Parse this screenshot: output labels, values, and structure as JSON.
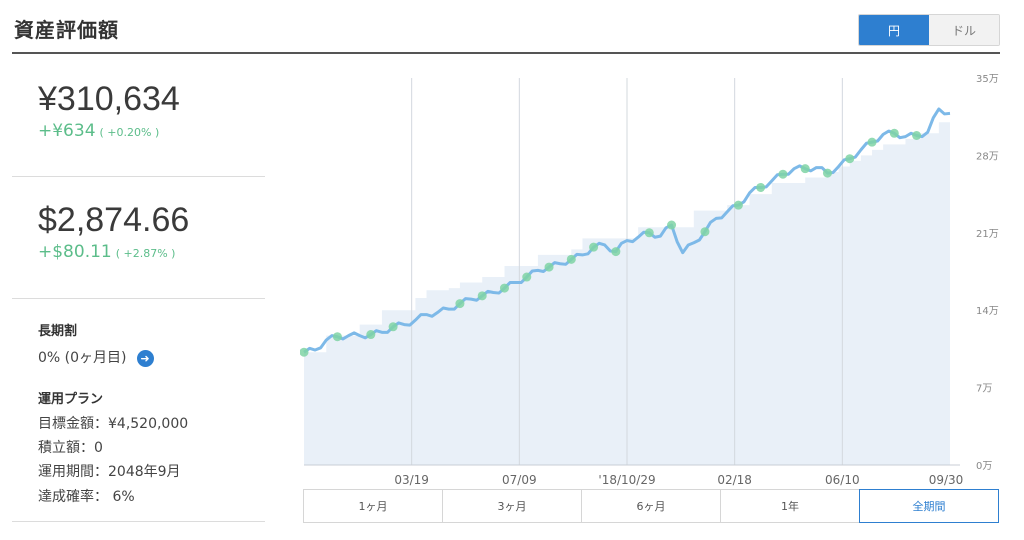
{
  "header": {
    "title": "資産評価額"
  },
  "currency_toggle": {
    "yen": "円",
    "dollar": "ドル",
    "selected": "円"
  },
  "yen_value": {
    "amount": "¥310,634",
    "change": "+¥634",
    "change_pct": "( +0.20% )"
  },
  "usd_value": {
    "amount": "$2,874.66",
    "change": "+$80.11",
    "change_pct": "( +2.87% )"
  },
  "long_term": {
    "label": "長期割",
    "value": "0% (0ヶ月目)"
  },
  "plan": {
    "label": "運用プラン",
    "target": "目標金額：¥4,520,000",
    "monthly": "積立額：0",
    "period": "運用期間：2048年9月",
    "probability": "達成確率： 6%"
  },
  "periods": [
    "1ヶ月",
    "3ヶ月",
    "6ヶ月",
    "1年",
    "全期間"
  ],
  "active_period": "全期間",
  "colors": {
    "accent": "#2e7fd0",
    "line": "#7db9e8",
    "area": "#e9f0f8",
    "marker": "#7fd3a4",
    "positive": "#5cbd8a"
  },
  "chart_data": {
    "type": "line",
    "x_labels": [
      "03/19",
      "07/09",
      "'18/10/29",
      "02/18",
      "06/10",
      "09/30"
    ],
    "y_ticks": [
      "0万",
      "7万",
      "14万",
      "21万",
      "28万",
      "35万"
    ],
    "ylim": [
      0,
      350000
    ],
    "grid": "vertical",
    "series": [
      {
        "values": [
          102000,
          104000,
          113000,
          116000,
          117000,
          117000,
          118000,
          120000,
          125000,
          127000,
          131000,
          136000,
          138000,
          141000,
          146000,
          150000,
          153000,
          156000,
          160000,
          165000,
          170000,
          176000,
          179000,
          182000,
          186000,
          190000,
          197000,
          199000,
          193000,
          203000,
          206000,
          210000,
          207000,
          217000,
          192000,
          201000,
          211000,
          223000,
          229000,
          235000,
          246000,
          251000,
          257000,
          263000,
          268000,
          268000,
          269000,
          264000,
          270000,
          277000,
          285000,
          292000,
          299000,
          300000,
          297000,
          298000,
          301000,
          322000,
          318000
        ]
      }
    ],
    "deposits": [
      102000,
      102000,
      117000,
      117000,
      117000,
      127000,
      127000,
      140000,
      140000,
      140000,
      151000,
      158000,
      158000,
      160000,
      165000,
      165000,
      170000,
      170000,
      180000,
      180000,
      180000,
      190000,
      190000,
      190000,
      195000,
      205000,
      205000,
      205000,
      205000,
      205000,
      215000,
      215000,
      215000,
      215000,
      215000,
      230000,
      230000,
      230000,
      235000,
      235000,
      245000,
      245000,
      255000,
      255000,
      255000,
      260000,
      260000,
      265000,
      270000,
      275000,
      280000,
      285000,
      290000,
      290000,
      295000,
      300000,
      300000,
      310000,
      310000
    ],
    "markers": [
      0,
      3,
      6,
      8,
      14,
      16,
      18,
      20,
      22,
      24,
      26,
      28,
      31,
      33,
      36,
      39,
      41,
      43,
      45,
      47,
      49,
      51,
      53,
      55
    ]
  }
}
